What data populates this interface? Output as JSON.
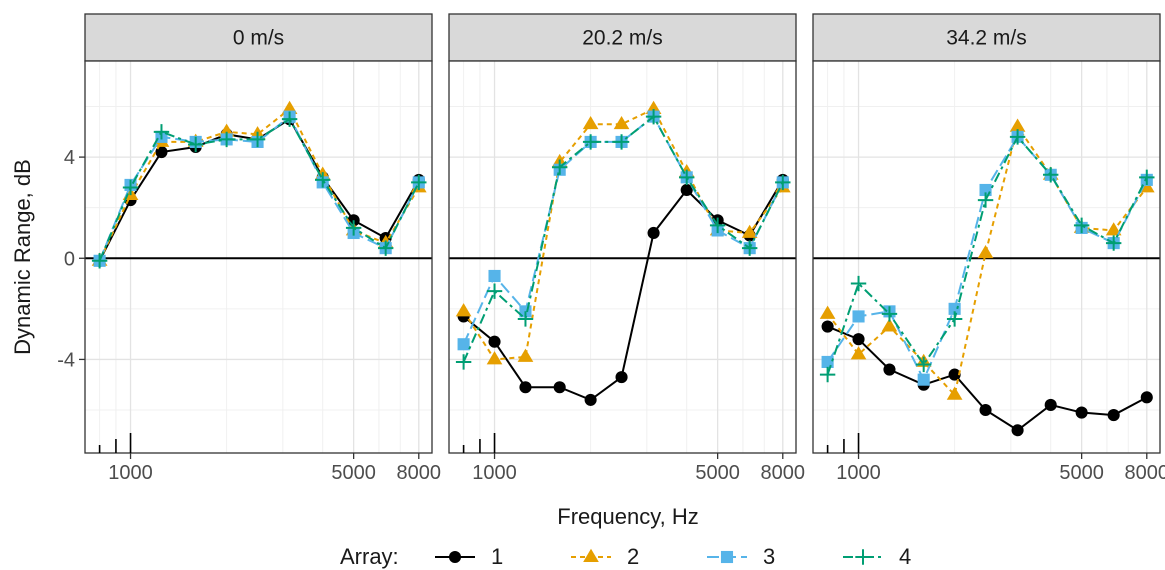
{
  "chart_data": {
    "type": "line",
    "xlabel": "Frequency, Hz",
    "ylabel": "Dynamic Range, dB",
    "x_scale": "log",
    "xlim": [
      720,
      8800
    ],
    "ylim": [
      -7.7,
      7.8
    ],
    "x_ticks": [
      1000,
      5000,
      8000
    ],
    "x_tick_labels": [
      "1000",
      "5000",
      "8000"
    ],
    "y_ticks": [
      -4,
      0,
      4
    ],
    "y_tick_labels": [
      "-4",
      "0",
      "4"
    ],
    "reference_line": 0,
    "grid": true,
    "legend_title": "Array:",
    "legend_position": "bottom",
    "x": [
      800,
      1000,
      1250,
      1600,
      2000,
      2500,
      3150,
      4000,
      5000,
      6300,
      8000
    ],
    "series_styles": [
      {
        "name": "1",
        "color": "#000000",
        "dash": "",
        "marker": "circle"
      },
      {
        "name": "2",
        "color": "#E69F00",
        "dash": "5,4",
        "marker": "triangle"
      },
      {
        "name": "3",
        "color": "#56B4E9",
        "dash": "12,5",
        "marker": "square"
      },
      {
        "name": "4",
        "color": "#009E73",
        "dash": "10,4,3,4",
        "marker": "plus"
      }
    ],
    "panels": [
      {
        "label": "0 m/s",
        "series": [
          {
            "name": "1",
            "values": [
              -0.1,
              2.3,
              4.2,
              4.4,
              4.9,
              4.7,
              5.5,
              3.2,
              1.5,
              0.8,
              3.1
            ]
          },
          {
            "name": "2",
            "values": [
              -0.1,
              2.5,
              4.6,
              4.6,
              5.0,
              4.9,
              5.9,
              3.3,
              1.1,
              0.6,
              2.8
            ]
          },
          {
            "name": "3",
            "values": [
              -0.1,
              2.9,
              4.8,
              4.6,
              4.7,
              4.6,
              5.6,
              3.0,
              1.0,
              0.4,
              3.0
            ]
          },
          {
            "name": "4",
            "values": [
              -0.1,
              2.8,
              5.0,
              4.5,
              4.7,
              4.7,
              5.5,
              3.1,
              1.2,
              0.4,
              3.0
            ]
          }
        ]
      },
      {
        "label": "20.2 m/s",
        "series": [
          {
            "name": "1",
            "values": [
              -2.3,
              -3.3,
              -5.1,
              -5.1,
              -5.6,
              -4.7,
              1.0,
              2.7,
              1.5,
              0.9,
              3.1
            ]
          },
          {
            "name": "2",
            "values": [
              -2.1,
              -4.0,
              -3.9,
              3.8,
              5.3,
              5.3,
              5.9,
              3.4,
              1.1,
              1.0,
              2.8
            ]
          },
          {
            "name": "3",
            "values": [
              -3.4,
              -0.7,
              -2.1,
              3.5,
              4.6,
              4.6,
              5.6,
              3.2,
              1.1,
              0.4,
              3.0
            ]
          },
          {
            "name": "4",
            "values": [
              -4.1,
              -1.3,
              -2.4,
              3.6,
              4.6,
              4.6,
              5.6,
              3.2,
              1.3,
              0.4,
              3.0
            ]
          }
        ]
      },
      {
        "label": "34.2 m/s",
        "series": [
          {
            "name": "1",
            "values": [
              -2.7,
              -3.2,
              -4.4,
              -5.0,
              -4.6,
              -6.0,
              -6.8,
              -5.8,
              -6.1,
              -6.2,
              -5.5
            ]
          },
          {
            "name": "2",
            "values": [
              -2.2,
              -3.8,
              -2.7,
              -4.1,
              -5.4,
              0.2,
              5.2,
              3.3,
              1.2,
              1.1,
              2.8
            ]
          },
          {
            "name": "3",
            "values": [
              -4.1,
              -2.3,
              -2.1,
              -4.8,
              -2.0,
              2.7,
              4.8,
              3.3,
              1.2,
              0.6,
              3.1
            ]
          },
          {
            "name": "4",
            "values": [
              -4.6,
              -1.0,
              -2.2,
              -4.2,
              -2.4,
              2.3,
              4.8,
              3.3,
              1.3,
              0.6,
              3.2
            ]
          }
        ]
      }
    ]
  }
}
